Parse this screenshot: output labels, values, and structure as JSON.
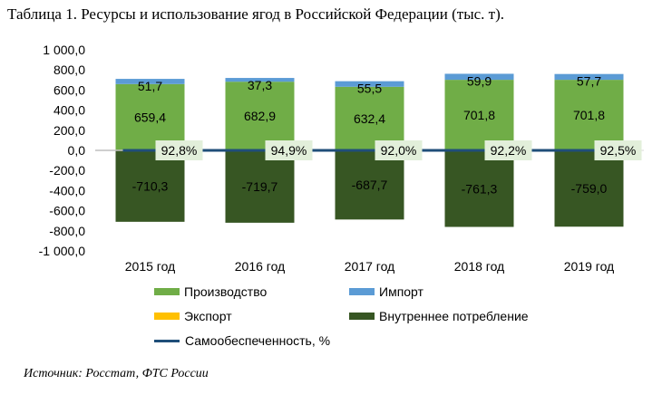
{
  "title": "Таблица 1. Ресурсы и использование ягод в Российской Федерации (тыс. т).",
  "source": "Источник: Росстат, ФТС России",
  "colors": {
    "production": "#70ad47",
    "import": "#5b9bd5",
    "export": "#ffc000",
    "consumption": "#375623",
    "self_sufficiency": "#1f4e79",
    "pct_label_bg": "#e2efda"
  },
  "legend": {
    "production": "Производство",
    "import": "Импорт",
    "export": "Экспорт",
    "consumption": "Внутреннее потребление",
    "self_sufficiency": "Самообеспеченность, %"
  },
  "chart_data": {
    "type": "bar",
    "stacked": true,
    "categories": [
      "2015 год",
      "2016 год",
      "2017 год",
      "2018 год",
      "2019 год"
    ],
    "ylim": [
      -1000,
      1000
    ],
    "ytick_values": [
      1000,
      800,
      600,
      400,
      200,
      0,
      -200,
      -400,
      -600,
      -800,
      -1000
    ],
    "ytick_labels": [
      "1 000,0",
      "800,0",
      "600,0",
      "400,0",
      "200,0",
      "0,0",
      "-200,0",
      "-400,0",
      "-600,0",
      "-800,0",
      "-1 000,0"
    ],
    "series": [
      {
        "name": "Производство",
        "key": "production",
        "values": [
          659.4,
          682.9,
          632.4,
          701.8,
          701.8
        ],
        "labels": [
          "659,4",
          "682,9",
          "632,4",
          "701,8",
          "701,8"
        ]
      },
      {
        "name": "Импорт",
        "key": "import",
        "values": [
          51.7,
          37.3,
          55.5,
          59.9,
          57.7
        ],
        "labels": [
          "51,7",
          "37,3",
          "55,5",
          "59,9",
          "57,7"
        ]
      },
      {
        "name": "Экспорт",
        "key": "export",
        "values": [
          0,
          0,
          0,
          0,
          0
        ]
      },
      {
        "name": "Внутреннее потребление",
        "key": "consumption",
        "values": [
          -710.3,
          -719.7,
          -687.7,
          -761.3,
          -759.0
        ],
        "labels": [
          "-710,3",
          "-719,7",
          "-687,7",
          "-761,3",
          "-759,0"
        ]
      }
    ],
    "line": {
      "name": "Самообеспеченность, %",
      "values": [
        92.8,
        94.9,
        92.0,
        92.2,
        92.5
      ],
      "labels": [
        "92,8%",
        "94,9%",
        "92,0%",
        "92,2%",
        "92,5%"
      ]
    }
  }
}
